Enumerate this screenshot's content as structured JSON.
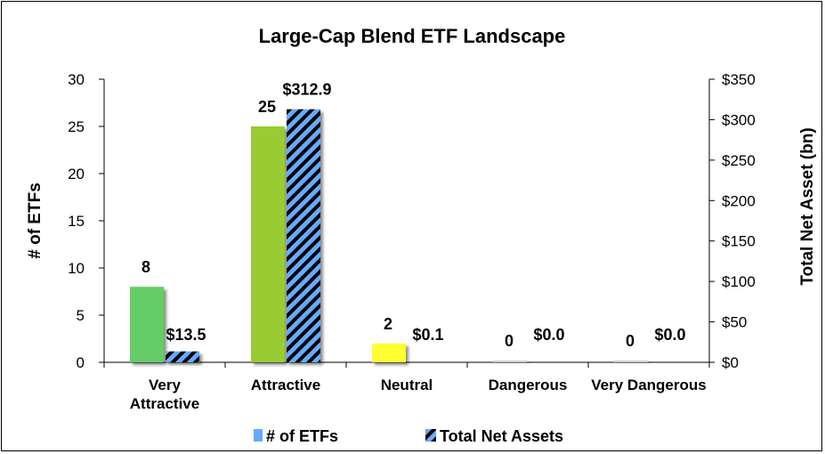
{
  "chart_data": {
    "type": "bar",
    "title": "Large-Cap Blend ETF Landscape",
    "categories": [
      "Very Attractive",
      "Attractive",
      "Neutral",
      "Dangerous",
      "Very Dangerous"
    ],
    "series": [
      {
        "name": "# of ETFs",
        "axis": "left",
        "values": [
          8,
          25,
          2,
          0,
          0
        ],
        "labels": [
          "8",
          "25",
          "2",
          "0",
          "0"
        ],
        "colors": [
          "#66cc66",
          "#99cc33",
          "#ffff33",
          "#cccccc",
          "#cccccc"
        ],
        "legend_color": "#66aaff"
      },
      {
        "name": "Total Net Assets",
        "axis": "right",
        "values": [
          13.5,
          312.9,
          0.1,
          0.0,
          0.0
        ],
        "labels": [
          "$13.5",
          "$312.9",
          "$0.1",
          "$0.0",
          "$0.0"
        ],
        "fill": "hatched",
        "colors": [
          "#66aaff",
          "#000000"
        ]
      }
    ],
    "ylabel": "# of ETFs",
    "ylim": [
      0,
      30
    ],
    "yticks": [
      "0",
      "5",
      "10",
      "15",
      "20",
      "25",
      "30"
    ],
    "y2label": "Total Net Asset (bn)",
    "y2lim": [
      0,
      350
    ],
    "y2ticks": [
      "$0",
      "$50",
      "$100",
      "$150",
      "$200",
      "$250",
      "$300",
      "$350"
    ],
    "grid": false,
    "legend": "bottom"
  }
}
